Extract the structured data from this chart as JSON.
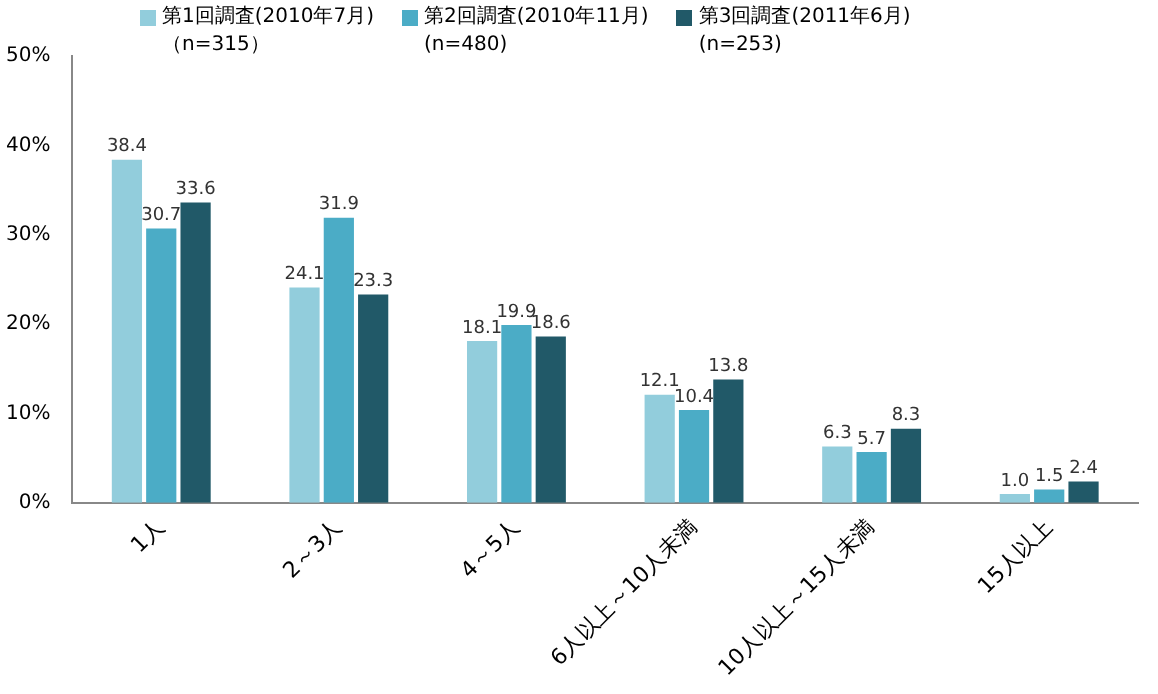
{
  "chart_data": {
    "type": "bar",
    "categories": [
      "1人",
      "2～3人",
      "4～5人",
      "6人以上～10人未満",
      "10人以上～15人未満",
      "15人以上"
    ],
    "series": [
      {
        "name": "第1回調査(2010年7月)\n（n=315）",
        "color": "#92cddc",
        "values": [
          38.4,
          24.1,
          18.1,
          12.1,
          6.3,
          1.0
        ],
        "value_labels": [
          "38.4",
          "24.1",
          "18.1",
          "12.1",
          "6.3",
          "1.0"
        ]
      },
      {
        "name": "第2回調査(2010年11月)\n(n=480)",
        "color": "#4bacc6",
        "values": [
          30.7,
          31.9,
          19.9,
          10.4,
          5.7,
          1.5
        ],
        "value_labels": [
          "30.7",
          "31.9",
          "19.9",
          "10.4",
          "5.7",
          "1.5"
        ]
      },
      {
        "name": "第3回調査(2011年6月)\n(n=253)",
        "color": "#215968",
        "values": [
          33.6,
          23.3,
          18.6,
          13.8,
          8.3,
          2.4
        ],
        "value_labels": [
          "33.6",
          "23.3",
          "18.6",
          "13.8",
          "8.3",
          "2.4"
        ]
      }
    ],
    "ylim": [
      0,
      50
    ],
    "yticks": [
      {
        "value": 0,
        "label": "0%"
      },
      {
        "value": 10,
        "label": "10%"
      },
      {
        "value": 20,
        "label": "20%"
      },
      {
        "value": 30,
        "label": "30%"
      },
      {
        "value": 40,
        "label": "40%"
      },
      {
        "value": 50,
        "label": "50%"
      }
    ],
    "grid": false,
    "legend": "top"
  }
}
